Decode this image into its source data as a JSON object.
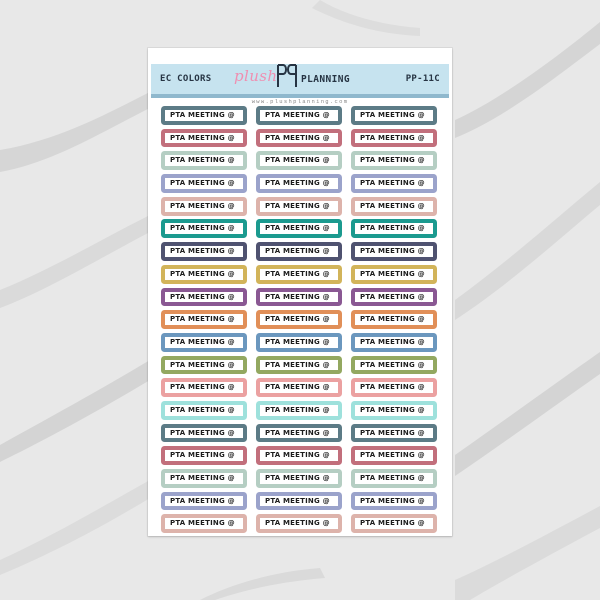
{
  "sheet": {
    "header_left": "EC COLORS",
    "header_right": "PP-11C",
    "logo": {
      "plush": "plush",
      "planning": "PLANNING"
    },
    "website": "www.plushplanning.com"
  },
  "sticker_label": "PTA MEETING @",
  "colors": {
    "pink": "#ef8fb1",
    "header_band": "#c6e3ef",
    "header_rule": "#8fb8cd",
    "text_dark": "#263443"
  },
  "rows": [
    [
      "#5c7b86",
      "#5c7b86",
      "#5c7b86"
    ],
    [
      "#c26f7c",
      "#c26f7c",
      "#c26f7c"
    ],
    [
      "#b5cec3",
      "#b5cec3",
      "#b5cec3"
    ],
    [
      "#9ba3cb",
      "#9ba3cb",
      "#9ba3cb"
    ],
    [
      "#ddb3ab",
      "#ddb3ab",
      "#ddb3ab"
    ],
    [
      "#1b9a8f",
      "#1b9a8f",
      "#1b9a8f"
    ],
    [
      "#4f5270",
      "#4f5270",
      "#4f5270"
    ],
    [
      "#d2b45a",
      "#d2b45a",
      "#d2b45a"
    ],
    [
      "#8a5893",
      "#8a5893",
      "#8a5893"
    ],
    [
      "#e18f58",
      "#e18f58",
      "#e18f58"
    ],
    [
      "#6b97be",
      "#6b97be",
      "#6b97be"
    ],
    [
      "#93a860",
      "#93a860",
      "#93a860"
    ],
    [
      "#eba1a1",
      "#eba1a1",
      "#eba1a1"
    ],
    [
      "#9ee1dc",
      "#9ee1dc",
      "#9ee1dc"
    ],
    [
      "#5c7b86",
      "#5c7b86",
      "#5c7b86"
    ],
    [
      "#c26f7c",
      "#c26f7c",
      "#c26f7c"
    ],
    [
      "#b5cec3",
      "#b5cec3",
      "#b5cec3"
    ],
    [
      "#9ba3cb",
      "#9ba3cb",
      "#9ba3cb"
    ],
    [
      "#ddb3ab",
      "#ddb3ab",
      "#ddb3ab"
    ]
  ]
}
